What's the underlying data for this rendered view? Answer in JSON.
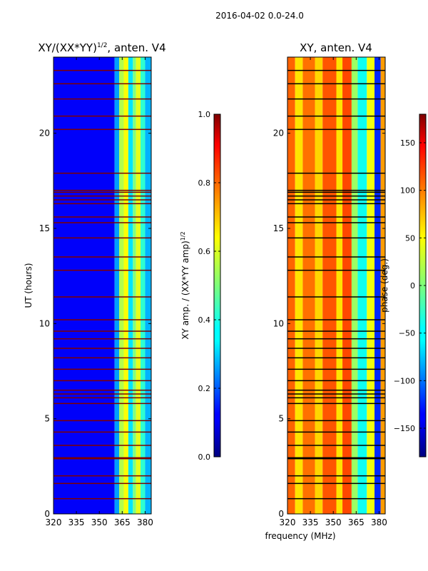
{
  "figure": {
    "suptitle": "2016-04-02 0.0-24.0",
    "shared_xlabel": "frequency (MHz)"
  },
  "chart_data": [
    {
      "type": "heatmap",
      "id": "left",
      "title_main": "XY/(XX*YY)",
      "title_exp": "1/2",
      "title_tail": ", anten. V4",
      "ylabel": "UT (hours)",
      "xlim": [
        320,
        384
      ],
      "ylim": [
        0,
        24
      ],
      "xticks": [
        320,
        335,
        350,
        365,
        380
      ],
      "yticks": [
        0,
        5,
        10,
        15,
        20
      ],
      "colormap": "jet",
      "colorbar": {
        "label_main": "XY amp. / (XX*YY amp)",
        "label_exp": "1/2",
        "range": [
          0.0,
          1.0
        ],
        "ticks": [
          "0.0",
          "0.2",
          "0.4",
          "0.6",
          "0.8",
          "1.0"
        ]
      },
      "bands": [
        {
          "x0": 320,
          "x1": 360,
          "value": 0.12
        },
        {
          "x0": 360,
          "x1": 363,
          "value": 0.28
        },
        {
          "x0": 363,
          "x1": 366,
          "value": 0.55
        },
        {
          "x0": 366,
          "x1": 369,
          "value": 0.62
        },
        {
          "x0": 369,
          "x1": 372,
          "value": 0.35
        },
        {
          "x0": 372,
          "x1": 374,
          "value": 0.5
        },
        {
          "x0": 374,
          "x1": 377,
          "value": 0.6
        },
        {
          "x0": 377,
          "x1": 380,
          "value": 0.42
        },
        {
          "x0": 380,
          "x1": 384,
          "value": 0.3
        }
      ],
      "flagged_times": [
        23.3,
        22.6,
        21.8,
        20.9,
        20.2,
        17.9,
        17.0,
        16.9,
        16.7,
        16.5,
        16.3,
        15.6,
        15.3,
        14.5,
        13.5,
        12.8,
        11.4,
        10.2,
        9.6,
        9.2,
        8.7,
        8.2,
        7.6,
        7.0,
        6.5,
        6.3,
        6.1,
        5.8,
        4.9,
        4.3,
        3.6,
        2.95,
        2.9,
        2.0,
        1.6,
        0.8
      ]
    },
    {
      "type": "heatmap",
      "id": "right",
      "title_main": "XY, anten. V4",
      "xlim": [
        320,
        384
      ],
      "ylim": [
        0,
        24
      ],
      "xticks": [
        320,
        335,
        350,
        365,
        380
      ],
      "yticks": [
        0,
        5,
        10,
        15,
        20
      ],
      "colormap": "jet",
      "colorbar": {
        "label_main": "phase (deg.)",
        "range": [
          -180,
          180
        ],
        "ticks": [
          "−150",
          "−100",
          "−50",
          "0",
          "50",
          "100",
          "150"
        ],
        "tick_values": [
          -150,
          -100,
          -50,
          0,
          50,
          100,
          150
        ]
      },
      "bands": [
        {
          "x0": 320,
          "x1": 325,
          "value": 100
        },
        {
          "x0": 325,
          "x1": 330,
          "value": 55
        },
        {
          "x0": 330,
          "x1": 338,
          "value": 95
        },
        {
          "x0": 338,
          "x1": 343,
          "value": 60
        },
        {
          "x0": 343,
          "x1": 352,
          "value": 105
        },
        {
          "x0": 352,
          "x1": 356,
          "value": 55
        },
        {
          "x0": 356,
          "x1": 362,
          "value": 110
        },
        {
          "x0": 362,
          "x1": 366,
          "value": 10
        },
        {
          "x0": 366,
          "x1": 372,
          "value": -40
        },
        {
          "x0": 372,
          "x1": 377,
          "value": 40
        },
        {
          "x0": 377,
          "x1": 381,
          "value": -120
        },
        {
          "x0": 381,
          "x1": 384,
          "value": 80
        }
      ],
      "flagged_times": [
        23.3,
        22.6,
        21.8,
        20.9,
        20.2,
        17.9,
        17.0,
        16.9,
        16.7,
        16.5,
        16.3,
        15.6,
        15.3,
        14.5,
        13.5,
        12.8,
        11.4,
        10.2,
        9.6,
        9.2,
        8.7,
        8.2,
        7.6,
        7.0,
        6.5,
        6.3,
        6.1,
        5.8,
        4.9,
        4.3,
        3.6,
        2.95,
        2.9,
        2.0,
        1.6,
        0.8
      ]
    }
  ]
}
